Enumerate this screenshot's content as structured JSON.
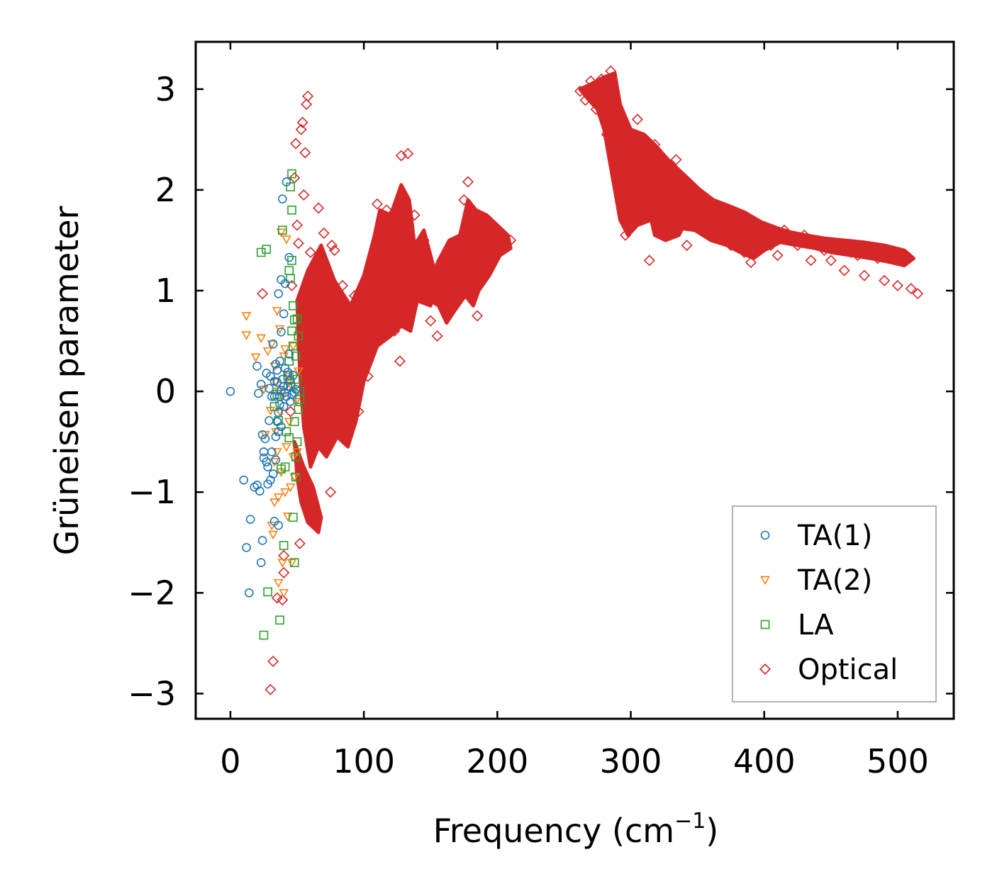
{
  "chart_data": {
    "type": "scatter",
    "title": "",
    "xlabel": "Frequency (cm",
    "xlabel_superscript": "−1",
    "xlabel_close": ")",
    "ylabel": "Grüneisen parameter",
    "xlim": [
      -26,
      542
    ],
    "ylim": [
      -3.25,
      3.47
    ],
    "xticks": [
      0,
      100,
      200,
      300,
      400,
      500
    ],
    "xtick_labels": [
      "0",
      "100",
      "200",
      "300",
      "400",
      "500"
    ],
    "yticks": [
      -3,
      -2,
      -1,
      0,
      1,
      2,
      3
    ],
    "ytick_labels": [
      "−3",
      "−2",
      "−1",
      "0",
      "1",
      "2",
      "3"
    ],
    "grid": false,
    "legend_position": "bottom-right",
    "series": [
      {
        "name": "TA(1)",
        "marker": "circle",
        "color": "#1f77b4",
        "points": [
          [
            0,
            0
          ],
          [
            10,
            -0.88
          ],
          [
            12,
            -1.55
          ],
          [
            14,
            -2.0
          ],
          [
            15,
            -1.27
          ],
          [
            18,
            -0.95
          ],
          [
            20,
            -0.93
          ],
          [
            20,
            0.25
          ],
          [
            21,
            -0.02
          ],
          [
            22,
            -0.99
          ],
          [
            23,
            -1.7
          ],
          [
            23,
            0.07
          ],
          [
            24,
            -1.48
          ],
          [
            24,
            -0.43
          ],
          [
            25,
            -0.6
          ],
          [
            25,
            -0.66
          ],
          [
            26,
            -0.47
          ],
          [
            27,
            -0.7
          ],
          [
            27,
            0.18
          ],
          [
            28,
            -0.75
          ],
          [
            28,
            -0.92
          ],
          [
            29,
            -0.29
          ],
          [
            30,
            0.15
          ],
          [
            30,
            -0.88
          ],
          [
            31,
            -0.6
          ],
          [
            32,
            -0.82
          ],
          [
            32,
            0.47
          ],
          [
            33,
            -1.29
          ],
          [
            33,
            -0.05
          ],
          [
            34,
            -0.68
          ],
          [
            34,
            0.27
          ],
          [
            35,
            -0.3
          ],
          [
            35,
            0.09
          ],
          [
            36,
            -1.33
          ],
          [
            36,
            0.97
          ],
          [
            36,
            -0.4
          ],
          [
            37,
            0.3
          ],
          [
            37,
            -0.13
          ],
          [
            38,
            0.59
          ],
          [
            38,
            1.11
          ],
          [
            38,
            0.01
          ],
          [
            39,
            1.91
          ],
          [
            40,
            0.77
          ],
          [
            40,
            -0.15
          ],
          [
            41,
            1.07
          ],
          [
            41,
            0.23
          ],
          [
            42,
            2.08
          ],
          [
            42,
            -0.05
          ],
          [
            43,
            0.05
          ],
          [
            44,
            0.37
          ],
          [
            44,
            1.33
          ],
          [
            45,
            0.11
          ],
          [
            46,
            -0.03
          ],
          [
            47,
            0.16
          ],
          [
            48,
            -0.01
          ],
          [
            49,
            0.02
          ],
          [
            33,
            0.1
          ],
          [
            35,
            0.21
          ],
          [
            37,
            -0.05
          ],
          [
            39,
            0.12
          ],
          [
            41,
            -0.01
          ],
          [
            43,
            0.19
          ],
          [
            31,
            -0.05
          ],
          [
            36,
            -0.21
          ],
          [
            40,
            0.05
          ],
          [
            45,
            -0.1
          ],
          [
            29,
            0.03
          ],
          [
            34,
            -0.45
          ],
          [
            38,
            -0.35
          ]
        ]
      },
      {
        "name": "TA(2)",
        "marker": "triangle-down",
        "color": "#ff7f0e",
        "points": [
          [
            12,
            0.75
          ],
          [
            12,
            0.56
          ],
          [
            19,
            0.34
          ],
          [
            23,
            0.53
          ],
          [
            25,
            0.02
          ],
          [
            26,
            -0.43
          ],
          [
            28,
            0.4
          ],
          [
            30,
            -0.19
          ],
          [
            31,
            0.47
          ],
          [
            31,
            -1.33
          ],
          [
            32,
            -1.42
          ],
          [
            33,
            -0.7
          ],
          [
            33,
            -1.1
          ],
          [
            34,
            -0.4
          ],
          [
            34,
            0.1
          ],
          [
            35,
            -0.6
          ],
          [
            35,
            0.8
          ],
          [
            36,
            -1.05
          ],
          [
            36,
            -1.9
          ],
          [
            37,
            -0.2
          ],
          [
            37,
            0.62
          ],
          [
            38,
            1.58
          ],
          [
            38,
            -0.8
          ],
          [
            39,
            -0.05
          ],
          [
            39,
            -1.7
          ],
          [
            40,
            -2.0
          ],
          [
            41,
            0.42
          ],
          [
            41,
            -1.0
          ],
          [
            42,
            1.51
          ],
          [
            42,
            -0.55
          ],
          [
            43,
            -1.24
          ],
          [
            44,
            0.15
          ],
          [
            44,
            -0.3
          ],
          [
            45,
            -0.95
          ],
          [
            46,
            -1.7
          ],
          [
            46,
            0.05
          ],
          [
            47,
            -0.65
          ],
          [
            48,
            -0.85
          ],
          [
            49,
            -0.1
          ],
          [
            50,
            -0.6
          ],
          [
            51,
            0.2
          ],
          [
            40,
            0.35
          ],
          [
            43,
            0.08
          ],
          [
            36,
            0.0
          ],
          [
            33,
            0.25
          ],
          [
            47,
            0.45
          ]
        ]
      },
      {
        "name": "LA",
        "marker": "square",
        "color": "#2ca02c",
        "points": [
          [
            23,
            1.38
          ],
          [
            25,
            -2.42
          ],
          [
            27,
            1.41
          ],
          [
            28,
            -1.99
          ],
          [
            33,
            -0.15
          ],
          [
            35,
            -0.03
          ],
          [
            36,
            -0.29
          ],
          [
            37,
            -2.27
          ],
          [
            38,
            -0.77
          ],
          [
            39,
            1.6
          ],
          [
            40,
            -1.53
          ],
          [
            41,
            -0.75
          ],
          [
            42,
            -0.4
          ],
          [
            43,
            0.16
          ],
          [
            44,
            1.2
          ],
          [
            44,
            -0.46
          ],
          [
            45,
            0.05
          ],
          [
            45,
            2.03
          ],
          [
            46,
            2.16
          ],
          [
            46,
            1.8
          ],
          [
            47,
            0.85
          ],
          [
            47,
            0.45
          ],
          [
            47,
            -1.25
          ],
          [
            48,
            -1.7
          ],
          [
            48,
            0.71
          ],
          [
            49,
            0.35
          ],
          [
            49,
            -0.85
          ],
          [
            50,
            0.12
          ],
          [
            50,
            -0.5
          ],
          [
            51,
            -0.18
          ],
          [
            51,
            0.55
          ],
          [
            52,
            -0.08
          ],
          [
            52,
            0.0
          ],
          [
            46,
            1.3
          ],
          [
            45,
            1.12
          ],
          [
            44,
            0.3
          ],
          [
            48,
            -0.3
          ],
          [
            49,
            -0.65
          ],
          [
            50,
            0.72
          ],
          [
            46,
            0.6
          ]
        ]
      },
      {
        "name": "Optical",
        "marker": "diamond",
        "color": "#d62728",
        "points": [
          [
            24,
            0.97
          ],
          [
            30,
            -2.96
          ],
          [
            32,
            -2.68
          ],
          [
            35,
            -2.05
          ],
          [
            39,
            -2.07
          ],
          [
            40,
            -1.63
          ],
          [
            40,
            -1.8
          ],
          [
            45,
            -0.2
          ],
          [
            46,
            1.05
          ],
          [
            48,
            2.12
          ],
          [
            49,
            2.46
          ],
          [
            50,
            1.65
          ],
          [
            51,
            1.47
          ],
          [
            52,
            -1.51
          ],
          [
            53,
            2.6
          ],
          [
            54,
            2.67
          ],
          [
            55,
            1.95
          ],
          [
            56,
            2.37
          ],
          [
            57,
            2.85
          ],
          [
            58,
            2.93
          ],
          [
            60,
            1.38
          ],
          [
            62,
            0.9
          ],
          [
            65,
            1.06
          ],
          [
            66,
            1.82
          ],
          [
            68,
            0.22
          ],
          [
            70,
            1.57
          ],
          [
            72,
            1.04
          ],
          [
            75,
            -1.0
          ],
          [
            76,
            1.45
          ],
          [
            78,
            1.4
          ],
          [
            80,
            0.15
          ],
          [
            84,
            1.05
          ],
          [
            88,
            0.3
          ],
          [
            93,
            0.95
          ],
          [
            96,
            -0.2
          ],
          [
            100,
            1.03
          ],
          [
            103,
            0.15
          ],
          [
            107,
            1.35
          ],
          [
            110,
            1.86
          ],
          [
            113,
            1.1
          ],
          [
            117,
            1.8
          ],
          [
            120,
            1.55
          ],
          [
            123,
            0.6
          ],
          [
            127,
            0.3
          ],
          [
            128,
            2.34
          ],
          [
            130,
            1.85
          ],
          [
            133,
            2.36
          ],
          [
            135,
            1.3
          ],
          [
            138,
            1.75
          ],
          [
            141,
            0.95
          ],
          [
            145,
            1.5
          ],
          [
            150,
            0.7
          ],
          [
            155,
            0.55
          ],
          [
            160,
            1.1
          ],
          [
            165,
            1.3
          ],
          [
            170,
            1.5
          ],
          [
            175,
            1.9
          ],
          [
            178,
            2.08
          ],
          [
            181,
            1.45
          ],
          [
            185,
            0.75
          ],
          [
            190,
            1.7
          ],
          [
            195,
            1.55
          ],
          [
            200,
            1.6
          ],
          [
            205,
            1.45
          ],
          [
            210,
            1.5
          ],
          [
            262,
            2.98
          ],
          [
            266,
            2.89
          ],
          [
            270,
            3.08
          ],
          [
            274,
            2.8
          ],
          [
            278,
            3.1
          ],
          [
            282,
            2.55
          ],
          [
            285,
            3.18
          ],
          [
            288,
            2.3
          ],
          [
            290,
            2.7
          ],
          [
            294,
            2.0
          ],
          [
            296,
            1.55
          ],
          [
            300,
            2.45
          ],
          [
            305,
            2.7
          ],
          [
            308,
            1.8
          ],
          [
            312,
            2.2
          ],
          [
            314,
            1.3
          ],
          [
            318,
            2.45
          ],
          [
            322,
            1.6
          ],
          [
            326,
            2.1
          ],
          [
            330,
            1.75
          ],
          [
            334,
            2.3
          ],
          [
            338,
            1.9
          ],
          [
            342,
            1.45
          ],
          [
            346,
            2.0
          ],
          [
            350,
            1.65
          ],
          [
            355,
            1.8
          ],
          [
            360,
            1.6
          ],
          [
            365,
            1.55
          ],
          [
            370,
            1.75
          ],
          [
            375,
            1.45
          ],
          [
            380,
            1.6
          ],
          [
            385,
            1.38
          ],
          [
            390,
            1.28
          ],
          [
            395,
            1.5
          ],
          [
            400,
            1.55
          ],
          [
            405,
            1.45
          ],
          [
            410,
            1.35
          ],
          [
            415,
            1.6
          ],
          [
            420,
            1.5
          ],
          [
            425,
            1.45
          ],
          [
            430,
            1.55
          ],
          [
            435,
            1.3
          ],
          [
            440,
            1.45
          ],
          [
            445,
            1.4
          ],
          [
            450,
            1.3
          ],
          [
            455,
            1.45
          ],
          [
            460,
            1.2
          ],
          [
            465,
            1.38
          ],
          [
            470,
            1.35
          ],
          [
            475,
            1.15
          ],
          [
            480,
            1.4
          ],
          [
            485,
            1.32
          ],
          [
            490,
            1.1
          ],
          [
            495,
            1.35
          ],
          [
            500,
            1.05
          ],
          [
            505,
            1.3
          ],
          [
            510,
            1.02
          ],
          [
            515,
            0.97
          ]
        ]
      }
    ]
  }
}
